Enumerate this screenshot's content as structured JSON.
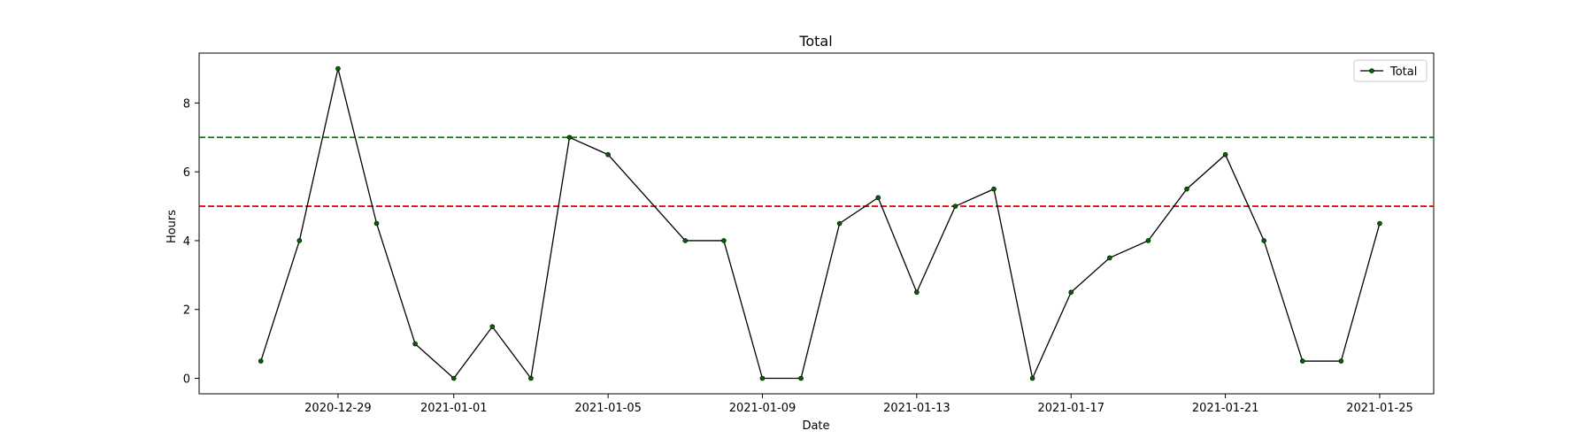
{
  "chart_data": {
    "type": "line",
    "title": "Total",
    "xlabel": "Date",
    "ylabel": "Hours",
    "x": [
      "2020-12-27",
      "2020-12-28",
      "2020-12-29",
      "2020-12-30",
      "2020-12-31",
      "2021-01-01",
      "2021-01-02",
      "2021-01-03",
      "2021-01-04",
      "2021-01-05",
      "2021-01-07",
      "2021-01-08",
      "2021-01-09",
      "2021-01-10",
      "2021-01-11",
      "2021-01-12",
      "2021-01-13",
      "2021-01-14",
      "2021-01-15",
      "2021-01-16",
      "2021-01-17",
      "2021-01-18",
      "2021-01-19",
      "2021-01-20",
      "2021-01-21",
      "2021-01-22",
      "2021-01-23",
      "2021-01-24",
      "2021-01-25"
    ],
    "series": [
      {
        "name": "Total",
        "values": [
          0.5,
          4,
          9,
          4.5,
          1,
          0,
          1.5,
          0,
          7,
          6.5,
          4,
          4,
          0,
          0,
          4.5,
          5.25,
          2.5,
          5,
          5.5,
          0,
          2.5,
          3.5,
          4,
          5.5,
          6.5,
          4,
          0.5,
          0.5,
          4.5
        ],
        "color": "#000000",
        "marker_color": "#006400"
      }
    ],
    "hlines": [
      {
        "value": 7,
        "color": "#008000",
        "style": "dashed"
      },
      {
        "value": 5,
        "color": "#ff0000",
        "style": "dashed"
      }
    ],
    "xlim": [
      "2020-12-25.4",
      "2021-01-26.4"
    ],
    "ylim": [
      -0.45,
      9.45
    ],
    "xticks": [
      "2020-12-29",
      "2021-01-01",
      "2021-01-05",
      "2021-01-09",
      "2021-01-13",
      "2021-01-17",
      "2021-01-21",
      "2021-01-25"
    ],
    "yticks": [
      0,
      2,
      4,
      6,
      8
    ],
    "grid": false,
    "legend_position": "top-right"
  }
}
